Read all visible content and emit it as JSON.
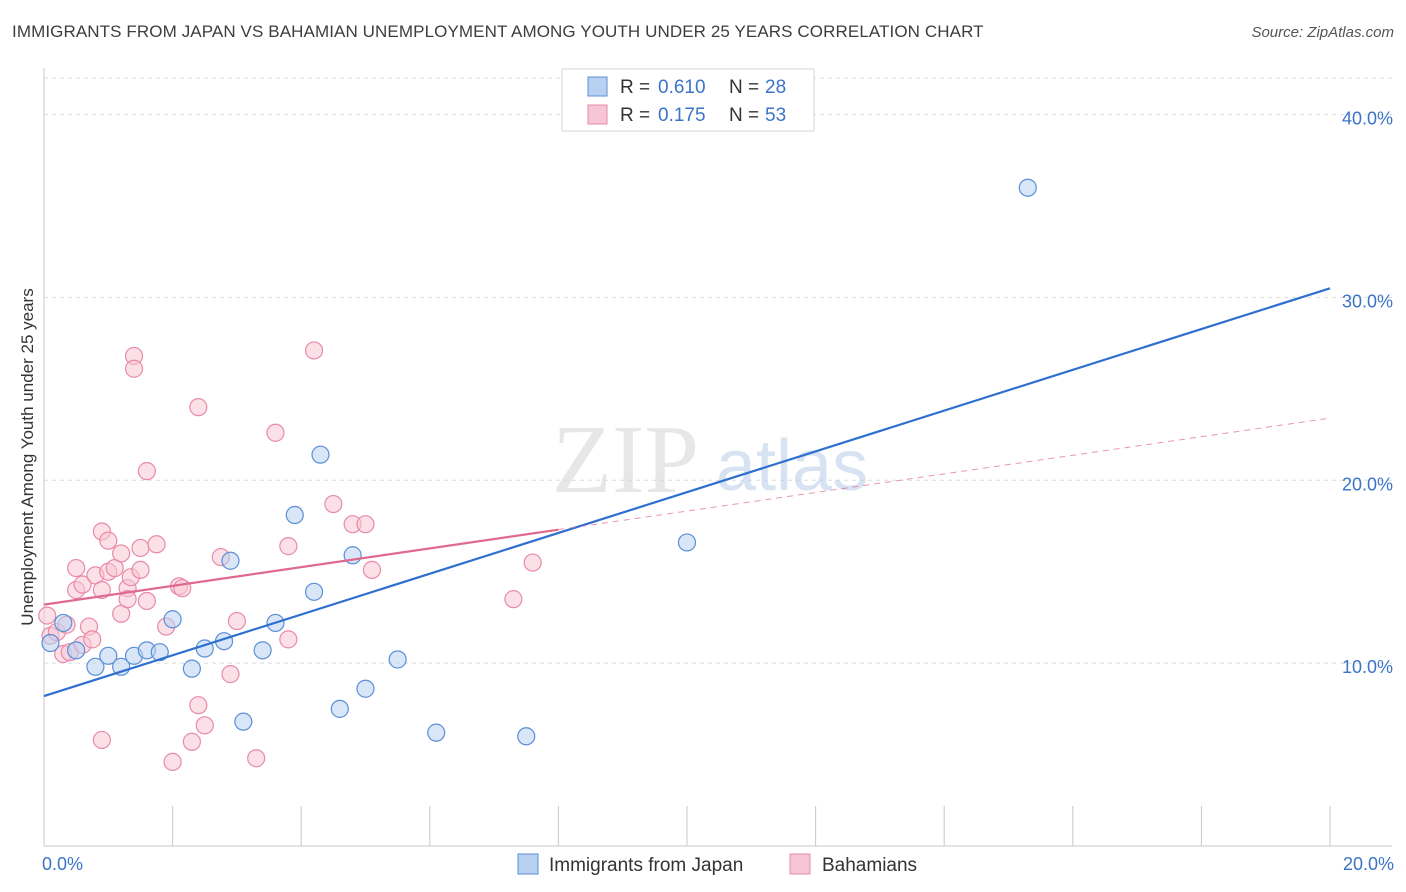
{
  "title": "IMMIGRANTS FROM JAPAN VS BAHAMIAN UNEMPLOYMENT AMONG YOUTH UNDER 25 YEARS CORRELATION CHART",
  "source": "Source: ZipAtlas.com",
  "watermark": {
    "zip": "ZIP",
    "atlas": "atlas"
  },
  "colors": {
    "blue_stroke": "#5b8fd6",
    "blue_fill": "#b8d1f3",
    "blue_line": "#2e6fcf",
    "pink_stroke": "#e98aa8",
    "pink_fill": "#f7c6d6",
    "pink_line": "#e0698f",
    "value_text": "#3a74c8"
  },
  "legend": [
    {
      "r_label": "R =",
      "r_value": "0.610",
      "n_label": "N =",
      "n_value": "28"
    },
    {
      "r_label": "R =",
      "r_value": "0.175",
      "n_label": "N =",
      "n_value": "53"
    }
  ],
  "chart_data": {
    "type": "scatter",
    "title": "IMMIGRANTS FROM JAPAN VS BAHAMIAN UNEMPLOYMENT AMONG YOUTH UNDER 25 YEARS CORRELATION CHART",
    "xlabel": "",
    "ylabel": "Unemployment Among Youth under 25 years",
    "xlim": [
      0,
      20
    ],
    "ylim": [
      0,
      42
    ],
    "x_tick_labels": [
      {
        "value": 0,
        "label": "0.0%"
      },
      {
        "value": 20,
        "label": "20.0%"
      }
    ],
    "y_tick_labels": [
      {
        "value": 10,
        "label": "10.0%"
      },
      {
        "value": 20,
        "label": "20.0%"
      },
      {
        "value": 30,
        "label": "30.0%"
      },
      {
        "value": 40,
        "label": "40.0%"
      }
    ],
    "grid": true,
    "series": [
      {
        "name": "Immigrants from Japan",
        "color": "blue",
        "points": [
          [
            0.1,
            11.1
          ],
          [
            0.3,
            12.2
          ],
          [
            0.5,
            10.7
          ],
          [
            0.8,
            9.8
          ],
          [
            1.0,
            10.4
          ],
          [
            1.2,
            9.8
          ],
          [
            1.4,
            10.4
          ],
          [
            1.6,
            10.7
          ],
          [
            1.8,
            10.6
          ],
          [
            2.0,
            12.4
          ],
          [
            2.3,
            9.7
          ],
          [
            2.5,
            10.8
          ],
          [
            2.8,
            11.2
          ],
          [
            2.9,
            15.6
          ],
          [
            3.1,
            6.8
          ],
          [
            3.4,
            10.7
          ],
          [
            3.6,
            12.2
          ],
          [
            3.9,
            18.1
          ],
          [
            4.2,
            13.9
          ],
          [
            4.3,
            21.4
          ],
          [
            4.6,
            7.5
          ],
          [
            4.8,
            15.9
          ],
          [
            5.0,
            8.6
          ],
          [
            5.5,
            10.2
          ],
          [
            6.1,
            6.2
          ],
          [
            7.5,
            6.0
          ],
          [
            10.0,
            16.6
          ],
          [
            15.3,
            36.0
          ]
        ],
        "trend": {
          "x0": 0,
          "y0": 8.2,
          "x1": 20,
          "y1": 30.5
        }
      },
      {
        "name": "Bahamians",
        "color": "pink",
        "points": [
          [
            0.05,
            12.6
          ],
          [
            0.1,
            11.5
          ],
          [
            0.2,
            11.7
          ],
          [
            0.3,
            10.5
          ],
          [
            0.35,
            12.1
          ],
          [
            0.4,
            10.6
          ],
          [
            0.5,
            15.2
          ],
          [
            0.5,
            14.0
          ],
          [
            0.6,
            14.3
          ],
          [
            0.6,
            11.0
          ],
          [
            0.7,
            12.0
          ],
          [
            0.75,
            11.3
          ],
          [
            0.8,
            14.8
          ],
          [
            0.9,
            17.2
          ],
          [
            0.9,
            14.0
          ],
          [
            1.0,
            16.7
          ],
          [
            1.0,
            15.0
          ],
          [
            1.1,
            15.2
          ],
          [
            1.2,
            16.0
          ],
          [
            1.2,
            12.7
          ],
          [
            1.3,
            14.1
          ],
          [
            1.3,
            13.5
          ],
          [
            1.35,
            14.7
          ],
          [
            1.4,
            26.8
          ],
          [
            1.4,
            26.1
          ],
          [
            1.5,
            15.1
          ],
          [
            1.5,
            16.3
          ],
          [
            1.6,
            13.4
          ],
          [
            1.6,
            20.5
          ],
          [
            1.75,
            16.5
          ],
          [
            1.9,
            12.0
          ],
          [
            2.0,
            4.6
          ],
          [
            2.1,
            14.2
          ],
          [
            2.15,
            14.1
          ],
          [
            2.3,
            5.7
          ],
          [
            2.4,
            7.7
          ],
          [
            2.4,
            24.0
          ],
          [
            2.5,
            6.6
          ],
          [
            2.75,
            15.8
          ],
          [
            2.9,
            9.4
          ],
          [
            3.0,
            12.3
          ],
          [
            3.3,
            4.8
          ],
          [
            3.6,
            22.6
          ],
          [
            3.8,
            11.3
          ],
          [
            3.8,
            16.4
          ],
          [
            4.2,
            27.1
          ],
          [
            4.5,
            18.7
          ],
          [
            4.8,
            17.6
          ],
          [
            5.0,
            17.6
          ],
          [
            5.1,
            15.1
          ],
          [
            7.3,
            13.5
          ],
          [
            7.6,
            15.5
          ],
          [
            0.9,
            5.8
          ]
        ],
        "trend": {
          "x0": 0,
          "y0": 13.2,
          "x1": 8.0,
          "y1": 17.3
        },
        "trend_extension": {
          "x0": 8.0,
          "y0": 17.3,
          "x1": 20,
          "y1": 23.4
        }
      }
    ],
    "legend_position": "top-center",
    "bottom_legend": [
      "Immigrants from Japan",
      "Bahamians"
    ]
  }
}
